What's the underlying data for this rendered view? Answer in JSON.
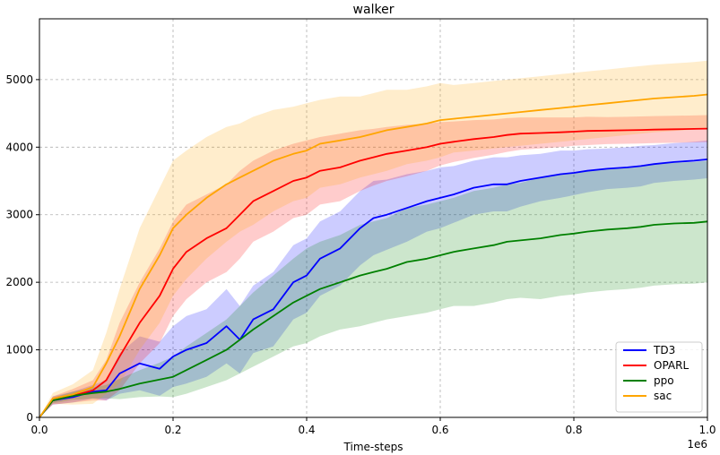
{
  "chart_data": {
    "type": "line",
    "title": "walker",
    "xlabel": "Time-steps",
    "ylabel": "",
    "x_scale_label": "1e6",
    "xlim": [
      0,
      1.0
    ],
    "ylim": [
      0,
      5900
    ],
    "x_ticks": [
      "0.0",
      "0.2",
      "0.4",
      "0.6",
      "0.8",
      "1.0"
    ],
    "y_ticks": [
      "0",
      "1000",
      "2000",
      "3000",
      "4000",
      "5000"
    ],
    "grid": true,
    "legend_position": "bottom-right",
    "series": [
      {
        "name": "TD3",
        "color": "#0000ff",
        "x": [
          0,
          0.02,
          0.05,
          0.08,
          0.1,
          0.12,
          0.15,
          0.18,
          0.2,
          0.22,
          0.25,
          0.28,
          0.3,
          0.32,
          0.35,
          0.38,
          0.4,
          0.42,
          0.45,
          0.48,
          0.5,
          0.52,
          0.55,
          0.58,
          0.6,
          0.62,
          0.65,
          0.68,
          0.7,
          0.72,
          0.75,
          0.78,
          0.8,
          0.82,
          0.85,
          0.88,
          0.9,
          0.92,
          0.95,
          0.98,
          1.0
        ],
        "values": [
          0,
          250,
          300,
          380,
          400,
          650,
          800,
          720,
          900,
          1000,
          1100,
          1350,
          1150,
          1450,
          1600,
          2000,
          2100,
          2350,
          2500,
          2800,
          2950,
          3000,
          3100,
          3200,
          3250,
          3300,
          3400,
          3450,
          3450,
          3500,
          3550,
          3600,
          3620,
          3650,
          3680,
          3700,
          3720,
          3750,
          3780,
          3800,
          3820
        ],
        "spread": [
          0,
          60,
          80,
          100,
          150,
          300,
          400,
          400,
          450,
          500,
          500,
          550,
          500,
          500,
          550,
          550,
          550,
          550,
          550,
          550,
          550,
          520,
          500,
          450,
          450,
          420,
          400,
          400,
          400,
          380,
          350,
          350,
          330,
          320,
          300,
          300,
          300,
          280,
          280,
          280,
          280
        ]
      },
      {
        "name": "OPARL",
        "color": "#ff0000",
        "x": [
          0,
          0.02,
          0.05,
          0.08,
          0.1,
          0.12,
          0.15,
          0.18,
          0.2,
          0.22,
          0.25,
          0.28,
          0.3,
          0.32,
          0.35,
          0.38,
          0.4,
          0.42,
          0.45,
          0.48,
          0.5,
          0.52,
          0.55,
          0.58,
          0.6,
          0.62,
          0.65,
          0.68,
          0.7,
          0.72,
          0.75,
          0.78,
          0.8,
          0.82,
          0.85,
          0.88,
          0.9,
          0.92,
          0.95,
          0.98,
          1.0
        ],
        "values": [
          0,
          250,
          320,
          400,
          550,
          900,
          1400,
          1800,
          2200,
          2450,
          2650,
          2800,
          3000,
          3200,
          3350,
          3500,
          3550,
          3650,
          3700,
          3800,
          3850,
          3900,
          3950,
          4000,
          4050,
          4080,
          4120,
          4150,
          4180,
          4200,
          4210,
          4220,
          4230,
          4240,
          4245,
          4250,
          4255,
          4260,
          4265,
          4270,
          4275
        ],
        "spread": [
          0,
          60,
          100,
          150,
          300,
          500,
          600,
          700,
          700,
          700,
          650,
          650,
          650,
          600,
          600,
          550,
          550,
          500,
          500,
          450,
          420,
          400,
          380,
          350,
          320,
          300,
          280,
          260,
          250,
          240,
          230,
          220,
          210,
          210,
          200,
          200,
          200,
          200,
          200,
          200,
          200
        ]
      },
      {
        "name": "ppo",
        "color": "#008000",
        "x": [
          0,
          0.02,
          0.05,
          0.08,
          0.1,
          0.12,
          0.15,
          0.18,
          0.2,
          0.22,
          0.25,
          0.28,
          0.3,
          0.32,
          0.35,
          0.38,
          0.4,
          0.42,
          0.45,
          0.48,
          0.5,
          0.52,
          0.55,
          0.58,
          0.6,
          0.62,
          0.65,
          0.68,
          0.7,
          0.72,
          0.75,
          0.78,
          0.8,
          0.82,
          0.85,
          0.88,
          0.9,
          0.92,
          0.95,
          0.98,
          1.0
        ],
        "values": [
          0,
          250,
          320,
          360,
          380,
          420,
          500,
          560,
          600,
          700,
          850,
          1000,
          1150,
          1300,
          1500,
          1700,
          1800,
          1900,
          2000,
          2100,
          2150,
          2200,
          2300,
          2350,
          2400,
          2450,
          2500,
          2550,
          2600,
          2620,
          2650,
          2700,
          2720,
          2750,
          2780,
          2800,
          2820,
          2850,
          2870,
          2880,
          2900
        ],
        "spread": [
          0,
          40,
          60,
          80,
          100,
          150,
          200,
          250,
          300,
          350,
          400,
          450,
          500,
          550,
          600,
          650,
          700,
          700,
          700,
          750,
          750,
          750,
          800,
          800,
          800,
          800,
          850,
          850,
          850,
          850,
          900,
          900,
          900,
          900,
          900,
          900,
          900,
          900,
          900,
          900,
          900
        ]
      },
      {
        "name": "sac",
        "color": "#ffa500",
        "x": [
          0,
          0.02,
          0.05,
          0.08,
          0.1,
          0.12,
          0.15,
          0.18,
          0.2,
          0.22,
          0.25,
          0.28,
          0.3,
          0.32,
          0.35,
          0.38,
          0.4,
          0.42,
          0.45,
          0.48,
          0.5,
          0.52,
          0.55,
          0.58,
          0.6,
          0.62,
          0.65,
          0.68,
          0.7,
          0.72,
          0.75,
          0.78,
          0.8,
          0.82,
          0.85,
          0.88,
          0.9,
          0.92,
          0.95,
          0.98,
          1.0
        ],
        "values": [
          0,
          280,
          340,
          450,
          800,
          1200,
          1900,
          2400,
          2800,
          3000,
          3250,
          3450,
          3550,
          3650,
          3800,
          3900,
          3950,
          4050,
          4100,
          4150,
          4200,
          4250,
          4300,
          4350,
          4400,
          4420,
          4450,
          4480,
          4500,
          4520,
          4550,
          4580,
          4600,
          4620,
          4650,
          4680,
          4700,
          4720,
          4740,
          4760,
          4780
        ],
        "spread": [
          0,
          80,
          150,
          250,
          450,
          700,
          900,
          1000,
          1000,
          950,
          900,
          850,
          800,
          800,
          750,
          700,
          700,
          650,
          650,
          600,
          600,
          600,
          550,
          550,
          550,
          500,
          500,
          500,
          500,
          500,
          500,
          500,
          500,
          500,
          500,
          500,
          500,
          500,
          500,
          500,
          500
        ]
      }
    ]
  }
}
